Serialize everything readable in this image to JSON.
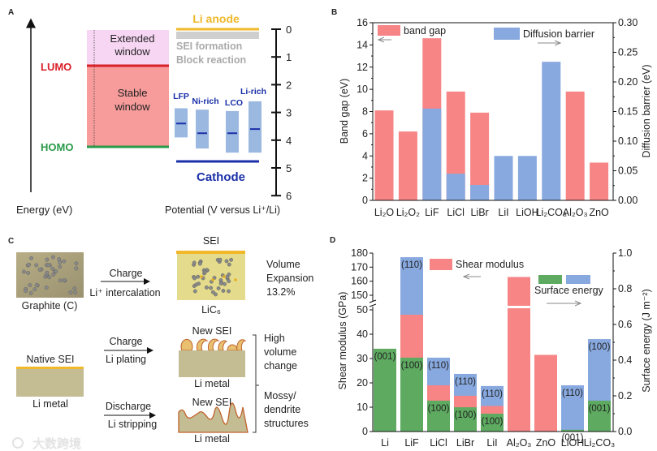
{
  "panels": {
    "a": "A",
    "b": "B",
    "c": "C",
    "d": "D"
  },
  "panel_a": {
    "energy_axis_label": "Energy (eV)",
    "potential_axis_label": "Potential (V  versus Li⁺/Li)",
    "extended_window": [
      "Extended",
      "window"
    ],
    "stable_window": [
      "Stable",
      "window"
    ],
    "lumo": "LUMO",
    "homo": "HOMO",
    "li_anode": "Li anode",
    "sei_formation": "SEI formation",
    "block_reaction": "Block reaction",
    "cathode": "Cathode",
    "potential_ticks": [
      "0",
      "1",
      "2",
      "3",
      "4",
      "5",
      "6"
    ],
    "cathodes": [
      {
        "name": "LFP",
        "range": [
          2.85,
          3.9
        ],
        "avg": 3.4
      },
      {
        "name": "Ni-rich",
        "range": [
          2.9,
          4.3
        ],
        "avg": 3.75
      },
      {
        "name": "LCO",
        "range": [
          2.95,
          4.45
        ],
        "avg": 3.75
      },
      {
        "name": "Li-rich",
        "range": [
          2.6,
          4.45
        ],
        "avg": 3.6
      }
    ],
    "colors": {
      "lumo": "#d9212a",
      "homo": "#2a9a48",
      "anode": "#f0b82a",
      "cathode": "#1a2fa8",
      "stable": "#f79b9b",
      "extended": "#f7d6f3",
      "cathode_box": "#9bb8e0"
    }
  },
  "panel_c": {
    "graphite": "Graphite (C)",
    "charge": "Charge",
    "intercalation": "Li⁺ intercalation",
    "sei": "SEI",
    "lic6": "LiC₆",
    "volume_expansion": [
      "Volume",
      "Expansion",
      "13.2%"
    ],
    "native_sei": "Native SEI",
    "li_metal": "Li metal",
    "charge2": "Charge",
    "li_plating": "Li  plating",
    "discharge": "Discharge",
    "li_stripping": "Li  stripping",
    "new_sei": "New SEI",
    "high_volume_change": [
      "High",
      "volume",
      "change"
    ],
    "mossy": [
      "Mossy/",
      "dendrite",
      "structures"
    ]
  },
  "watermark": "大数跨境",
  "chart_data": [
    {
      "id": "B",
      "type": "bar",
      "categories": [
        "Li₂O",
        "Li₂O₂",
        "LiF",
        "LiCl",
        "LiBr",
        "LiI",
        "LiOH",
        "Li₂CO₃",
        "Al₂O₃",
        "ZnO"
      ],
      "series": [
        {
          "name": "band gap",
          "axis": "left",
          "color": "#f78586",
          "values": [
            8.1,
            6.2,
            14.6,
            9.8,
            7.9,
            null,
            null,
            null,
            9.8,
            3.4
          ]
        },
        {
          "name": "Diffusion barrier",
          "axis": "right",
          "color": "#88a9df",
          "values": [
            null,
            null,
            0.155,
            0.045,
            0.026,
            0.075,
            0.075,
            0.234,
            null,
            null
          ]
        }
      ],
      "ylabel": "Band gap (eV)",
      "ylabel_right": "Diffusion barrier (eV)",
      "ylim": [
        0,
        16
      ],
      "ylim_right": [
        0,
        0.3
      ],
      "yticks": [
        "0",
        "2",
        "4",
        "6",
        "8",
        "10",
        "12",
        "14",
        "16"
      ],
      "yticks_right": [
        "0.00",
        "0.05",
        "0.10",
        "0.15",
        "0.20",
        "0.25",
        "0.30"
      ],
      "legend": "top"
    },
    {
      "id": "D",
      "type": "bar",
      "categories": [
        "Li",
        "LiF",
        "LiCl",
        "LiBr",
        "LiI",
        "Al₂O₃",
        "ZnO",
        "LiOH",
        "Li₂CO₃"
      ],
      "series": [
        {
          "name": "Shear modulus",
          "axis": "left",
          "color": "#f78586",
          "values": [
            4.2,
            48,
            19,
            14.7,
            10.5,
            163,
            31.5,
            null,
            null
          ]
        },
        {
          "name": "Surface energy (low facet)",
          "axis": "right",
          "color": "#5daa60",
          "values": [
            0.464,
            0.414,
            0.173,
            0.136,
            0.1,
            null,
            null,
            0.01,
            0.173
          ],
          "facets": [
            "(001)",
            "(100)",
            "(100)",
            "(100)",
            "(100)",
            null,
            null,
            "(001)",
            "(001)"
          ]
        },
        {
          "name": "Surface energy (high facet)",
          "axis": "right",
          "color": "#88a9df",
          "values": [
            null,
            0.977,
            0.414,
            0.323,
            0.255,
            null,
            null,
            0.259,
            0.518
          ],
          "facets": [
            null,
            "(110)",
            "(110)",
            "(110)",
            "(110)",
            null,
            null,
            "(110)",
            "(100)"
          ]
        }
      ],
      "legend_labels": {
        "shear": "Shear modulus",
        "surface": "Surface energy"
      },
      "ylabel": "Shear modulus (GPa)",
      "ylabel_right": "Surface energy (J m⁻²)",
      "ylim": [
        0,
        180
      ],
      "y_break": [
        50,
        145
      ],
      "ylim_right": [
        0,
        1.0
      ],
      "yticks": [
        "0",
        "10",
        "20",
        "30",
        "40",
        "50",
        "150",
        "160",
        "170",
        "180"
      ],
      "yticks_right": [
        "0.0",
        "0.2",
        "0.4",
        "0.6",
        "0.8",
        "1.0"
      ],
      "legend": "top"
    }
  ]
}
